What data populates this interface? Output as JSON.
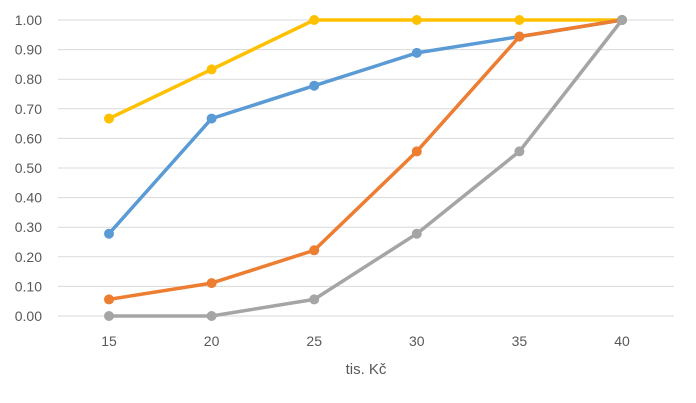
{
  "chart_data": {
    "type": "line",
    "title": "",
    "xlabel": "tis. Kč",
    "ylabel": "",
    "categories": [
      "15",
      "20",
      "25",
      "30",
      "35",
      "40"
    ],
    "ylim": [
      0,
      1
    ],
    "yticks": [
      "0.00",
      "0.10",
      "0.20",
      "0.30",
      "0.40",
      "0.50",
      "0.60",
      "0.70",
      "0.80",
      "0.90",
      "1.00"
    ],
    "grid": true,
    "legend": "none",
    "series": [
      {
        "name": "series-yellow",
        "color": "#ffc000",
        "values": [
          0.667,
          0.833,
          1.0,
          1.0,
          1.0,
          1.0
        ]
      },
      {
        "name": "series-blue",
        "color": "#5b9bd5",
        "values": [
          0.278,
          0.667,
          0.778,
          0.889,
          0.944,
          1.0
        ]
      },
      {
        "name": "series-orange",
        "color": "#ed7d31",
        "values": [
          0.056,
          0.111,
          0.222,
          0.556,
          0.944,
          1.0
        ]
      },
      {
        "name": "series-gray",
        "color": "#a5a5a5",
        "values": [
          0.0,
          0.0,
          0.056,
          0.278,
          0.556,
          1.0
        ]
      }
    ]
  }
}
